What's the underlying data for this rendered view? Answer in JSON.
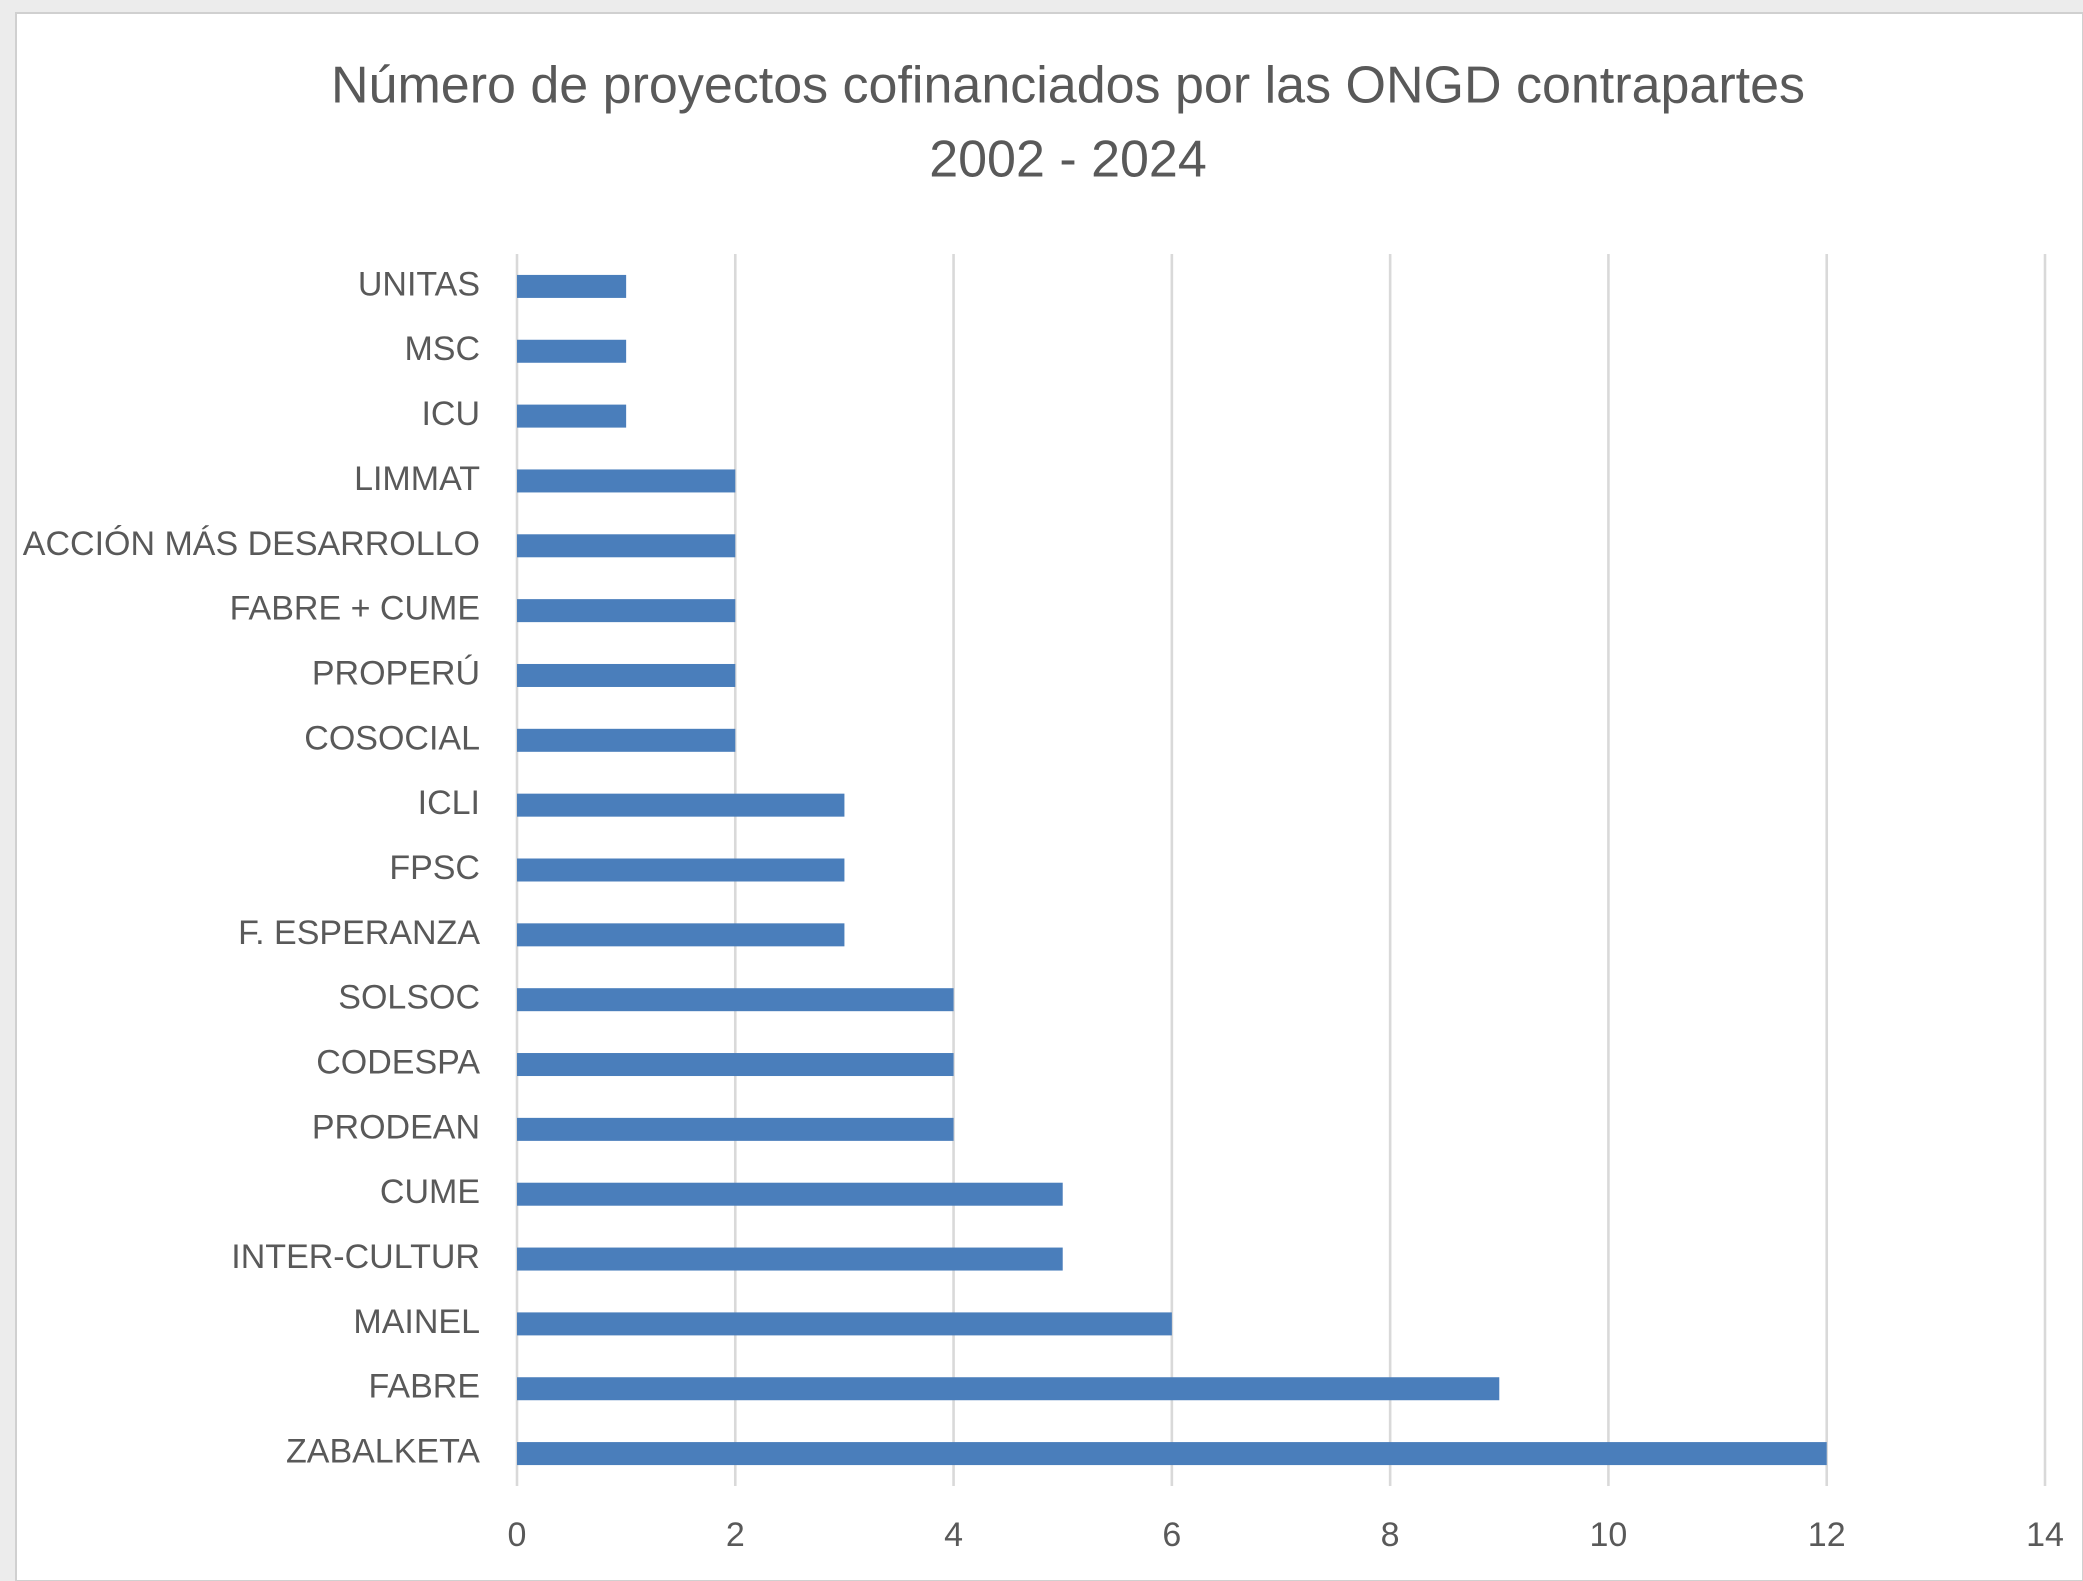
{
  "chart_data": {
    "type": "barh",
    "title": "Número de proyectos cofinanciados por las ONGD contrapartes",
    "subtitle": "2002 - 2024",
    "categories": [
      "UNITAS",
      "MSC",
      "ICU",
      "LIMMAT",
      "ACCIÓN MÁS DESARROLLO",
      "FABRE + CUME",
      "PROPERÚ",
      "COSOCIAL",
      "ICLI",
      "FPSC",
      "F. ESPERANZA",
      "SOLSOC",
      "CODESPA",
      "PRODEAN",
      "CUME",
      "INTER-CULTUR",
      "MAINEL",
      "FABRE",
      "ZABALKETA"
    ],
    "values": [
      1,
      1,
      1,
      2,
      2,
      2,
      2,
      2,
      3,
      3,
      3,
      4,
      4,
      4,
      5,
      5,
      6,
      9,
      12
    ],
    "color": "#4a7ebb",
    "xlim": [
      0,
      14
    ],
    "xticks": [
      0,
      2,
      4,
      6,
      8,
      10,
      12,
      14
    ],
    "grid": true
  }
}
